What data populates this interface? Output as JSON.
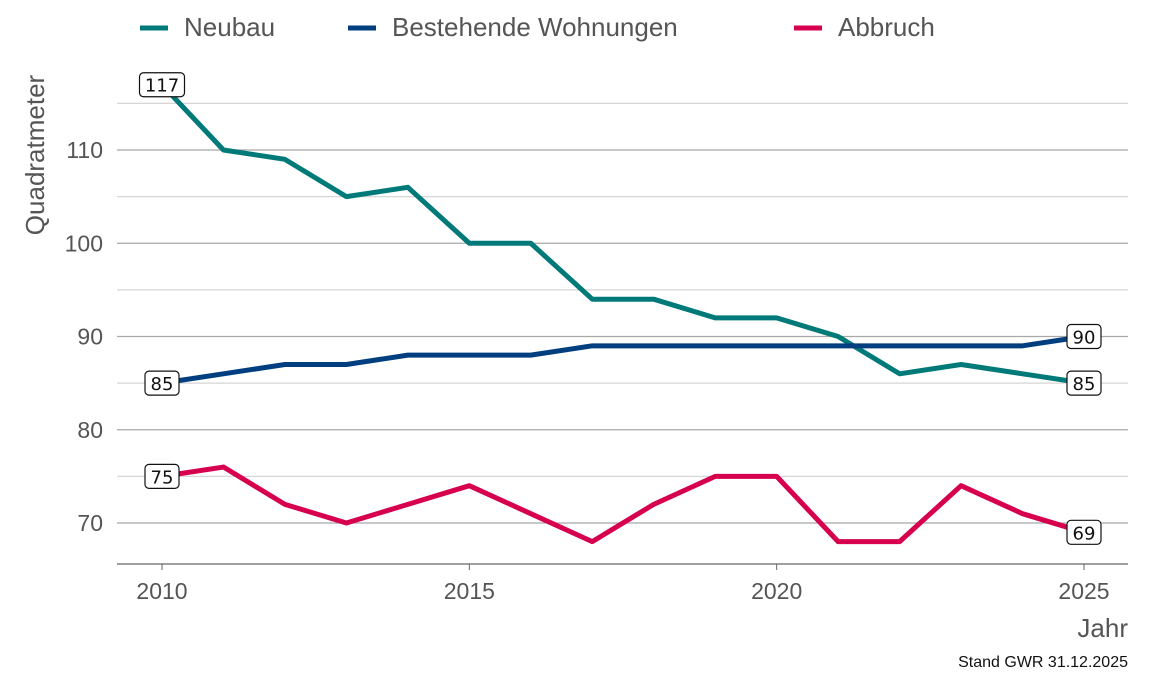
{
  "chart_data": {
    "type": "line",
    "title": "",
    "xlabel": "Jahr",
    "ylabel": "Quadratmeter",
    "caption": "Stand GWR 31.12.2025",
    "x": [
      2010,
      2011,
      2012,
      2013,
      2014,
      2015,
      2016,
      2017,
      2018,
      2019,
      2020,
      2021,
      2022,
      2023,
      2024,
      2025
    ],
    "xticks": [
      "2010",
      "2015",
      "2020",
      "2025"
    ],
    "yticks": [
      "70",
      "80",
      "90",
      "100",
      "110"
    ],
    "xlim": [
      2009.3,
      2025.7
    ],
    "ylim": [
      65.6,
      119
    ],
    "grid": true,
    "legend_position": "top-left",
    "series": [
      {
        "name": "Neubau",
        "color": "#007a78",
        "values": [
          117,
          110,
          109,
          105,
          106,
          100,
          100,
          94,
          94,
          92,
          92,
          90,
          86,
          87,
          86,
          85
        ],
        "labels": {
          "first": "117",
          "last": "85"
        }
      },
      {
        "name": "Bestehende Wohnungen",
        "color": "#003f7f",
        "values": [
          85,
          86,
          87,
          87,
          88,
          88,
          88,
          89,
          89,
          89,
          89,
          89,
          89,
          89,
          89,
          90
        ],
        "labels": {
          "first": "85",
          "last": "90"
        }
      },
      {
        "name": "Abbruch",
        "color": "#d6004f",
        "values": [
          75,
          76,
          72,
          70,
          72,
          74,
          71,
          68,
          72,
          75,
          75,
          68,
          68,
          74,
          71,
          69
        ],
        "labels": {
          "first": "75",
          "last": "69"
        }
      }
    ]
  }
}
